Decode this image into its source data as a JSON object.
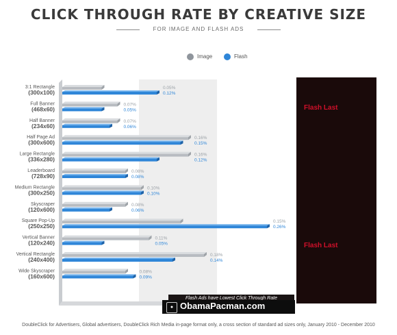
{
  "header": {
    "title": "CLICK THROUGH RATE BY CREATIVE SIZE",
    "subtitle": "FOR IMAGE AND FLASH ADS"
  },
  "legend": {
    "image_label": "Image",
    "flash_label": "Flash",
    "image_color": "#8f959c",
    "flash_color": "#2f86d8"
  },
  "chart_data": {
    "type": "bar",
    "orientation": "horizontal",
    "title": "CLICK THROUGH RATE BY CREATIVE SIZE",
    "subtitle": "FOR IMAGE AND FLASH ADS",
    "categories": [
      {
        "name": "3:1 Rectangle",
        "size": "(300x100)"
      },
      {
        "name": "Full Banner",
        "size": "(468x60)"
      },
      {
        "name": "Half Banner",
        "size": "(234x60)"
      },
      {
        "name": "Half Page Ad",
        "size": "(300x600)"
      },
      {
        "name": "Large Rectangle",
        "size": "(336x280)"
      },
      {
        "name": "Leaderboard",
        "size": "(728x90)"
      },
      {
        "name": "Medium Rectangle",
        "size": "(300x250)"
      },
      {
        "name": "Skyscraper",
        "size": "(120x600)"
      },
      {
        "name": "Square Pop-Up",
        "size": "(250x250)"
      },
      {
        "name": "Vertical Banner",
        "size": "(120x240)"
      },
      {
        "name": "Vertical Rectangle",
        "size": "(240x400)"
      },
      {
        "name": "Wide Skyscraper",
        "size": "(160x600)"
      }
    ],
    "series": [
      {
        "name": "Image",
        "values": [
          0.05,
          0.07,
          0.07,
          0.16,
          0.16,
          0.08,
          0.1,
          0.08,
          0.15,
          0.11,
          0.18,
          0.08
        ],
        "labels": [
          "0.05%",
          "0.07%",
          "0.07%",
          "0.16%",
          "0.16%",
          "0.08%",
          "0.10%",
          "0.08%",
          "0.15%",
          "0.11%",
          "0.18%",
          "0.08%"
        ]
      },
      {
        "name": "Flash",
        "values": [
          0.12,
          0.05,
          0.06,
          0.15,
          0.12,
          0.08,
          0.1,
          0.06,
          0.26,
          0.05,
          0.14,
          0.09
        ],
        "labels": [
          "0.12%",
          "0.05%",
          "0.06%",
          "0.15%",
          "0.12%",
          "0.08%",
          "0.10%",
          "0.06%",
          "0.26%",
          "0.05%",
          "0.14%",
          "0.09%"
        ]
      }
    ],
    "bar_geometry_note": "",
    "legend_position": "top-center",
    "grid": false
  },
  "overlay": {
    "flash_last_top": "Flash Last",
    "flash_last_bottom": "Flash Last"
  },
  "watermark": {
    "banner": "Flash Ads have Lowest Click Through Rate",
    "site": "ObamaPacman.com"
  },
  "footer": {
    "source": "DoubleClick for Advertisers, Global advertisers, DoubleClick Rich Media in-page format only, a cross section of standard ad sizes only, January 2010 - December 2010"
  }
}
